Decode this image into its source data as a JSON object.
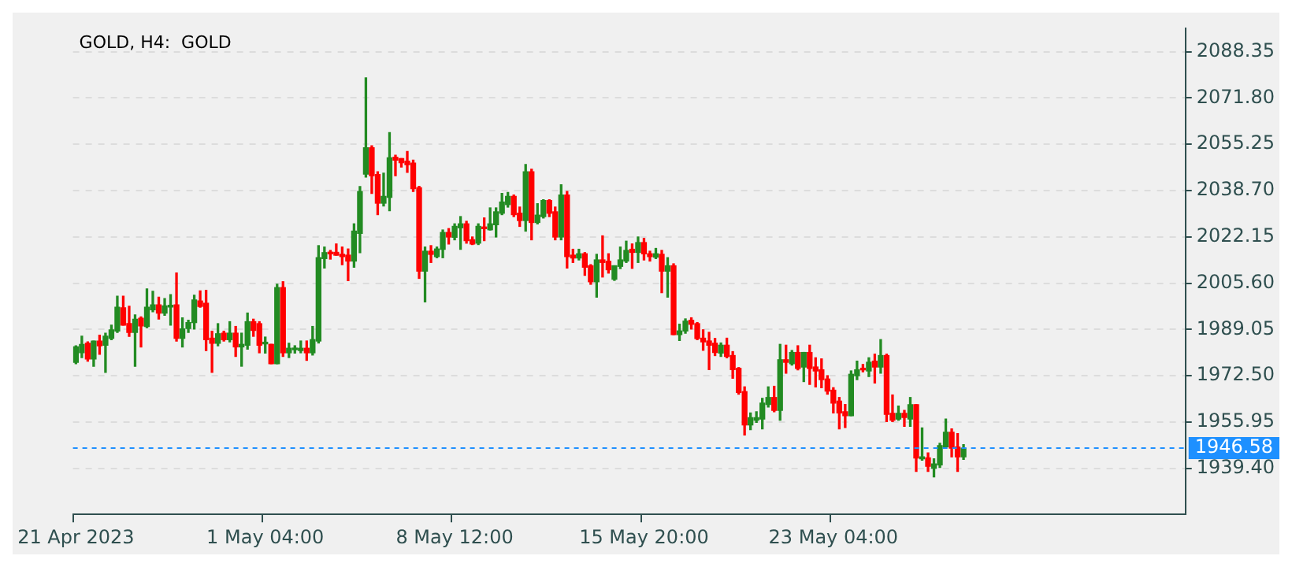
{
  "chart_data": {
    "type": "candlestick",
    "title": "GOLD, H4:  GOLD",
    "categories": [
      "21 Apr 2023",
      null,
      null,
      null,
      null,
      null,
      null,
      null,
      null,
      null,
      null,
      null,
      null,
      null,
      null,
      null,
      null,
      null,
      null,
      null,
      null,
      null,
      null,
      null,
      null,
      null,
      null,
      null,
      null,
      null,
      null,
      null,
      "1 May 04:00",
      null,
      null,
      null,
      null,
      null,
      null,
      null,
      null,
      null,
      null,
      null,
      null,
      null,
      null,
      null,
      null,
      null,
      null,
      null,
      null,
      null,
      null,
      null,
      null,
      null,
      null,
      null,
      null,
      null,
      null,
      null,
      "8 May 12:00",
      null,
      null,
      null,
      null,
      null,
      null,
      null,
      null,
      null,
      null,
      null,
      null,
      null,
      null,
      null,
      null,
      null,
      null,
      null,
      null,
      null,
      null,
      null,
      null,
      null,
      null,
      null,
      null,
      null,
      null,
      null,
      "15 May 20:00",
      null,
      null,
      null,
      null,
      null,
      null,
      null,
      null,
      null,
      null,
      null,
      null,
      null,
      null,
      null,
      null,
      null,
      null,
      null,
      null,
      null,
      null,
      null,
      null,
      null,
      null,
      null,
      null,
      null,
      null,
      null,
      "23 May 04:00",
      null,
      null,
      null,
      null,
      null,
      null,
      null,
      null,
      null,
      null,
      null,
      null,
      null,
      null,
      null,
      null,
      null,
      null,
      null,
      null,
      null,
      null,
      null,
      null,
      null,
      null,
      null,
      null,
      null,
      null,
      null,
      null,
      null,
      null,
      null,
      null,
      null,
      null,
      null,
      null,
      null,
      null,
      null,
      null,
      null,
      null,
      null,
      null,
      null,
      null,
      null,
      null,
      null,
      null,
      null,
      null,
      null,
      null,
      null
    ],
    "ohlc": [
      [
        1977.3,
        1983.2,
        1976.8,
        1982.8
      ],
      [
        1980.7,
        1986.6,
        1979.0,
        1983.7
      ],
      [
        1984.1,
        1984.6,
        1977.7,
        1978.5
      ],
      [
        1978.5,
        1984.9,
        1975.9,
        1984.9
      ],
      [
        1984.9,
        1987.0,
        1980.2,
        1983.2
      ],
      [
        1983.4,
        1987.7,
        1973.7,
        1986.6
      ],
      [
        1985.9,
        1990.6,
        1985.4,
        1988.9
      ],
      [
        1988.5,
        2000.9,
        1988.0,
        1997.0
      ],
      [
        1996.8,
        2000.9,
        1990.6,
        1990.6
      ],
      [
        1991.1,
        1997.3,
        1986.6,
        1988.0
      ],
      [
        1988.0,
        1994.2,
        1975.9,
        1992.7
      ],
      [
        1993.0,
        1993.5,
        1982.8,
        1990.3
      ],
      [
        1990.1,
        2003.5,
        1989.7,
        1997.0
      ],
      [
        1996.1,
        2002.7,
        1995.4,
        1997.8
      ],
      [
        1997.8,
        2000.6,
        1992.8,
        1994.9
      ],
      [
        1994.9,
        2000.1,
        1994.1,
        1997.5
      ],
      [
        1997.1,
        2001.5,
        1990.6,
        1997.5
      ],
      [
        1997.8,
        2009.2,
        1984.9,
        1985.9
      ],
      [
        1985.9,
        1993.2,
        1982.8,
        1989.2
      ],
      [
        1989.4,
        1992.3,
        1988.0,
        1991.5
      ],
      [
        1991.5,
        2001.3,
        1989.2,
        1999.6
      ],
      [
        1999.2,
        2002.8,
        1997.0,
        1997.3
      ],
      [
        1998.4,
        2003.0,
        1981.5,
        1985.4
      ],
      [
        1985.9,
        1988.4,
        1973.7,
        1984.1
      ],
      [
        1984.1,
        1991.1,
        1983.2,
        1987.5
      ],
      [
        1987.7,
        1988.4,
        1984.9,
        1985.4
      ],
      [
        1985.4,
        1991.8,
        1984.6,
        1987.7
      ],
      [
        1987.7,
        1990.1,
        1979.4,
        1982.8
      ],
      [
        1982.8,
        1987.7,
        1975.9,
        1983.7
      ],
      [
        1983.4,
        1994.9,
        1982.0,
        1991.8
      ],
      [
        1991.8,
        1992.7,
        1986.6,
        1988.7
      ],
      [
        1991.1,
        1991.8,
        1980.7,
        1983.4
      ],
      [
        1983.9,
        1986.3,
        1980.6,
        1984.2
      ],
      [
        1983.7,
        1983.7,
        1976.8,
        1976.8
      ],
      [
        1976.8,
        2005.2,
        1976.8,
        2004.0
      ],
      [
        2004.0,
        2006.1,
        1979.4,
        1980.7
      ],
      [
        1980.7,
        1984.1,
        1979.0,
        1982.3
      ],
      [
        1981.8,
        1983.2,
        1980.6,
        1982.1
      ],
      [
        1981.5,
        1984.9,
        1980.7,
        1982.3
      ],
      [
        1982.3,
        1984.9,
        1978.0,
        1980.7
      ],
      [
        1980.7,
        1990.1,
        1979.9,
        1985.4
      ],
      [
        1984.9,
        2019.0,
        1984.2,
        2014.7
      ],
      [
        2014.4,
        2018.5,
        2011.0,
        2016.5
      ],
      [
        2016.6,
        2017.3,
        2014.2,
        2016.1
      ],
      [
        2016.6,
        2019.6,
        2015.6,
        2015.6
      ],
      [
        2015.9,
        2018.5,
        2012.2,
        2015.1
      ],
      [
        2015.6,
        2017.8,
        2006.5,
        2013.5
      ],
      [
        2013.5,
        2026.8,
        2011.3,
        2024.2
      ],
      [
        2023.4,
        2040.1,
        2016.5,
        2038.4
      ],
      [
        2044.6,
        2079.0,
        2043.5,
        2054.0
      ],
      [
        2054.0,
        2054.7,
        2037.7,
        2044.0
      ],
      [
        2044.4,
        2045.4,
        2030.1,
        2034.2
      ],
      [
        2034.2,
        2044.9,
        2033.2,
        2036.6
      ],
      [
        2036.3,
        2059.4,
        2031.5,
        2050.4
      ],
      [
        2050.6,
        2051.3,
        2044.0,
        2049.6
      ],
      [
        2050.1,
        2050.1,
        2047.1,
        2048.7
      ],
      [
        2049.2,
        2052.7,
        2045.2,
        2048.0
      ],
      [
        2048.5,
        2049.6,
        2038.4,
        2039.4
      ],
      [
        2039.7,
        2040.2,
        2007.3,
        2009.9
      ],
      [
        2009.9,
        2018.5,
        1998.9,
        2017.0
      ],
      [
        2017.0,
        2019.0,
        2013.0,
        2015.9
      ],
      [
        2015.1,
        2018.5,
        2014.7,
        2017.8
      ],
      [
        2017.7,
        2024.6,
        2014.7,
        2023.7
      ],
      [
        2023.7,
        2025.1,
        2019.6,
        2022.1
      ],
      [
        2022.0,
        2026.8,
        2021.1,
        2025.9
      ],
      [
        2025.4,
        2029.4,
        2017.7,
        2026.8
      ],
      [
        2026.8,
        2027.7,
        2019.9,
        2020.8
      ],
      [
        2021.1,
        2022.1,
        2019.4,
        2019.6
      ],
      [
        2019.9,
        2026.8,
        2019.4,
        2025.9
      ],
      [
        2025.4,
        2028.9,
        2020.8,
        2025.1
      ],
      [
        2024.7,
        2032.5,
        2024.6,
        2026.8
      ],
      [
        2026.5,
        2032.5,
        2022.1,
        2031.1
      ],
      [
        2030.6,
        2037.7,
        2030.1,
        2034.6
      ],
      [
        2033.7,
        2038.0,
        2032.8,
        2036.6
      ],
      [
        2036.6,
        2037.1,
        2029.4,
        2030.1
      ],
      [
        2030.6,
        2032.8,
        2025.9,
        2028.0
      ],
      [
        2028.0,
        2048.0,
        2024.2,
        2045.4
      ],
      [
        2045.4,
        2046.3,
        2021.1,
        2027.3
      ],
      [
        2027.3,
        2034.0,
        2026.8,
        2029.9
      ],
      [
        2029.4,
        2035.4,
        2028.9,
        2035.1
      ],
      [
        2035.1,
        2035.4,
        2029.4,
        2030.6
      ],
      [
        2031.1,
        2032.8,
        2021.1,
        2022.1
      ],
      [
        2022.1,
        2040.8,
        2021.1,
        2037.1
      ],
      [
        2037.1,
        2038.4,
        2011.0,
        2015.1
      ],
      [
        2015.6,
        2017.7,
        2013.0,
        2014.6
      ],
      [
        2014.6,
        2017.7,
        2013.9,
        2016.1
      ],
      [
        2016.1,
        2016.5,
        2008.4,
        2011.3
      ],
      [
        2011.8,
        2012.2,
        2005.2,
        2006.1
      ],
      [
        2006.1,
        2015.9,
        2000.6,
        2013.9
      ],
      [
        2013.9,
        2022.5,
        2007.8,
        2013.0
      ],
      [
        2013.4,
        2016.1,
        2009.2,
        2010.4
      ],
      [
        2007.0,
        2011.8,
        2006.6,
        2011.8
      ],
      [
        2011.6,
        2018.5,
        2010.8,
        2013.9
      ],
      [
        2013.5,
        2020.6,
        2013.0,
        2017.3
      ],
      [
        2017.7,
        2019.6,
        2010.9,
        2016.6
      ],
      [
        2016.6,
        2022.1,
        2013.0,
        2020.1
      ],
      [
        2020.1,
        2021.6,
        2013.9,
        2016.1
      ],
      [
        2016.1,
        2017.0,
        2013.5,
        2015.1
      ],
      [
        2014.9,
        2018.0,
        2014.4,
        2016.1
      ],
      [
        2015.9,
        2017.3,
        2002.2,
        2009.9
      ],
      [
        2009.9,
        2014.7,
        2000.6,
        2011.8
      ],
      [
        2011.8,
        2012.5,
        1987.2,
        1987.2
      ],
      [
        1987.2,
        1990.9,
        1985.1,
        1988.5
      ],
      [
        1988.5,
        1992.8,
        1987.7,
        1992.0
      ],
      [
        1992.3,
        1993.2,
        1989.2,
        1990.9
      ],
      [
        1991.1,
        1991.5,
        1985.4,
        1985.8
      ],
      [
        1985.9,
        1988.9,
        1981.6,
        1984.6
      ],
      [
        1984.9,
        1988.0,
        1974.7,
        1983.4
      ],
      [
        1984.1,
        1985.8,
        1979.7,
        1980.8
      ],
      [
        1980.6,
        1984.2,
        1979.4,
        1983.4
      ],
      [
        1983.4,
        1985.9,
        1978.9,
        1979.4
      ],
      [
        1979.7,
        1981.1,
        1971.6,
        1974.7
      ],
      [
        1975.1,
        1975.4,
        1965.9,
        1966.5
      ],
      [
        1966.8,
        1968.5,
        1951.3,
        1954.9
      ],
      [
        1954.9,
        1959.2,
        1953.2,
        1957.5
      ],
      [
        1956.6,
        1959.6,
        1955.8,
        1957.5
      ],
      [
        1957.0,
        1964.4,
        1953.5,
        1962.7
      ],
      [
        1962.2,
        1968.5,
        1961.3,
        1964.7
      ],
      [
        1964.7,
        1968.7,
        1959.6,
        1960.1
      ],
      [
        1960.1,
        1983.7,
        1956.6,
        1978.2
      ],
      [
        1978.2,
        1983.4,
        1973.4,
        1977.3
      ],
      [
        1976.8,
        1981.5,
        1976.3,
        1980.8
      ],
      [
        1980.8,
        1983.2,
        1974.6,
        1975.1
      ],
      [
        1975.6,
        1980.8,
        1970.4,
        1980.8
      ],
      [
        1980.8,
        1983.4,
        1969.4,
        1975.1
      ],
      [
        1975.6,
        1978.9,
        1968.5,
        1974.2
      ],
      [
        1974.6,
        1978.5,
        1968.2,
        1971.1
      ],
      [
        1971.3,
        1972.5,
        1965.9,
        1967.0
      ],
      [
        1967.3,
        1968.2,
        1959.2,
        1962.7
      ],
      [
        1963.4,
        1964.7,
        1953.5,
        1959.2
      ],
      [
        1959.6,
        1962.2,
        1954.0,
        1958.2
      ],
      [
        1958.2,
        1974.2,
        1958.2,
        1973.0
      ],
      [
        1972.5,
        1977.7,
        1971.1,
        1974.6
      ],
      [
        1975.1,
        1976.5,
        1973.9,
        1974.6
      ],
      [
        1974.2,
        1978.9,
        1972.2,
        1977.3
      ],
      [
        1977.7,
        1980.2,
        1969.9,
        1975.6
      ],
      [
        1975.6,
        1985.4,
        1973.4,
        1979.7
      ],
      [
        1979.7,
        1980.2,
        1956.1,
        1958.7
      ],
      [
        1959.0,
        1965.6,
        1956.1,
        1956.6
      ],
      [
        1957.0,
        1961.6,
        1956.6,
        1959.0
      ],
      [
        1959.0,
        1960.1,
        1954.4,
        1957.6
      ],
      [
        1957.0,
        1964.7,
        1954.4,
        1962.1
      ],
      [
        1962.1,
        1962.1,
        1938.3,
        1943.1
      ],
      [
        1942.8,
        1953.8,
        1942.3,
        1943.5
      ],
      [
        1943.1,
        1944.9,
        1938.3,
        1940.1
      ],
      [
        1939.4,
        1942.8,
        1936.3,
        1940.9
      ],
      [
        1940.6,
        1948.3,
        1939.7,
        1947.5
      ],
      [
        1947.1,
        1957.0,
        1946.6,
        1952.3
      ],
      [
        1952.3,
        1953.5,
        1943.5,
        1946.6
      ],
      [
        1947.0,
        1951.8,
        1938.3,
        1943.5
      ],
      [
        1943.5,
        1947.8,
        1942.6,
        1946.58
      ],
      null,
      null,
      null,
      null,
      null,
      null,
      null,
      null,
      null,
      null,
      null,
      null,
      null,
      null,
      null,
      null,
      null,
      null,
      null,
      null,
      null,
      null,
      null,
      null,
      null,
      null,
      null,
      null,
      null,
      null,
      null,
      null,
      null,
      null,
      null,
      null,
      null
    ],
    "ylim": [
      1922.9,
      2096.6
    ],
    "yticks": [
      {
        "value": 1939.4,
        "label": "1939.40"
      },
      {
        "value": 1955.95,
        "label": "1955.95"
      },
      {
        "value": 1972.5,
        "label": "1972.50"
      },
      {
        "value": 1989.05,
        "label": "1989.05"
      },
      {
        "value": 2005.6,
        "label": "2005.60"
      },
      {
        "value": 2022.15,
        "label": "2022.15"
      },
      {
        "value": 2038.7,
        "label": "2038.70"
      },
      {
        "value": 2055.25,
        "label": "2055.25"
      },
      {
        "value": 2071.8,
        "label": "2071.80"
      },
      {
        "value": 2088.35,
        "label": "2088.35"
      }
    ],
    "ref_lines": [
      {
        "axis": "y",
        "value": 1946.58,
        "label": "1946.58",
        "color": "#1e90ff",
        "line_style": "dashed"
      }
    ],
    "grid": "y"
  }
}
